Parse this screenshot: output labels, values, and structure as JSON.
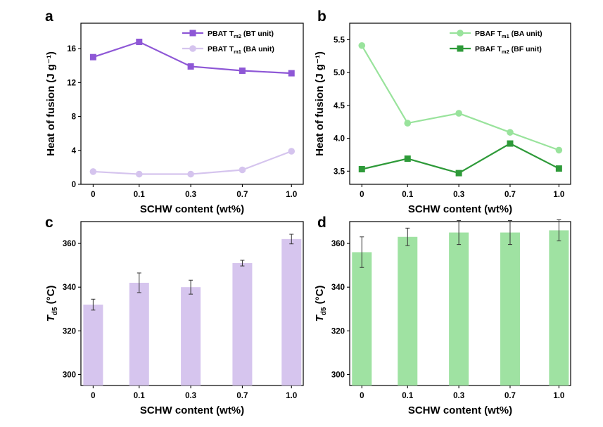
{
  "chart_data": [
    {
      "panel": "a",
      "type": "line",
      "categories": [
        "0",
        "0.1",
        "0.3",
        "0.7",
        "1.0"
      ],
      "xlabel": "SCHW content (wt%)",
      "ylabel": "Heat of fusion (J g⁻¹)",
      "ylim": [
        0,
        19
      ],
      "yticks": [
        0,
        4,
        8,
        12,
        16
      ],
      "legend_position": "top-right",
      "series": [
        {
          "name": "PBAT T",
          "sub": "m2",
          "suffix": " (BT unit)",
          "marker": "square",
          "color": "#8e57d6",
          "values": [
            15.0,
            16.8,
            13.9,
            13.4,
            13.1
          ]
        },
        {
          "name": "PBAT T",
          "sub": "m1",
          "suffix": " (BA unit)",
          "marker": "circle",
          "color": "#d5c4ee",
          "values": [
            1.5,
            1.2,
            1.2,
            1.7,
            3.9
          ]
        }
      ]
    },
    {
      "panel": "b",
      "type": "line",
      "categories": [
        "0",
        "0.1",
        "0.3",
        "0.7",
        "1.0"
      ],
      "xlabel": "SCHW content (wt%)",
      "ylabel": "Heat of fusion (J g⁻¹)",
      "ylim": [
        3.3,
        5.75
      ],
      "yticks": [
        3.5,
        4.0,
        4.5,
        5.0,
        5.5
      ],
      "ytick_labels": [
        "3.5",
        "4.0",
        "4.5",
        "5.0",
        "5.5"
      ],
      "legend_position": "top-right",
      "series": [
        {
          "name": "PBAF T",
          "sub": "m1",
          "suffix": " (BA unit)",
          "marker": "circle",
          "color": "#99e39c",
          "values": [
            5.41,
            4.23,
            4.38,
            4.09,
            3.82
          ]
        },
        {
          "name": "PBAF T",
          "sub": "m2",
          "suffix": " (BF unit)",
          "marker": "square",
          "color": "#2e9a39",
          "values": [
            3.53,
            3.69,
            3.47,
            3.92,
            3.54
          ]
        }
      ]
    },
    {
      "panel": "c",
      "type": "bar",
      "categories": [
        "0",
        "0.1",
        "0.3",
        "0.7",
        "1.0"
      ],
      "xlabel": "SCHW content (wt%)",
      "ylabel_main": "T",
      "ylabel_sub": "d5",
      "ylabel_rest": " (°C)",
      "ylim": [
        295,
        370
      ],
      "yticks": [
        300,
        320,
        340,
        360
      ],
      "color": "#d6c5ee",
      "values": [
        332,
        342,
        340,
        351,
        362
      ],
      "errors": [
        2.5,
        4.5,
        3.2,
        1.3,
        2.2
      ]
    },
    {
      "panel": "d",
      "type": "bar",
      "categories": [
        "0",
        "0.1",
        "0.3",
        "0.7",
        "1.0"
      ],
      "xlabel": "SCHW content (wt%)",
      "ylabel_main": "T",
      "ylabel_sub": "d5",
      "ylabel_rest": " (°C)",
      "ylim": [
        295,
        370
      ],
      "yticks": [
        300,
        320,
        340,
        360
      ],
      "color": "#9fe2a2",
      "values": [
        356,
        363,
        365,
        365,
        366
      ],
      "errors": [
        7,
        4,
        5.5,
        5.5,
        4.8
      ]
    }
  ]
}
